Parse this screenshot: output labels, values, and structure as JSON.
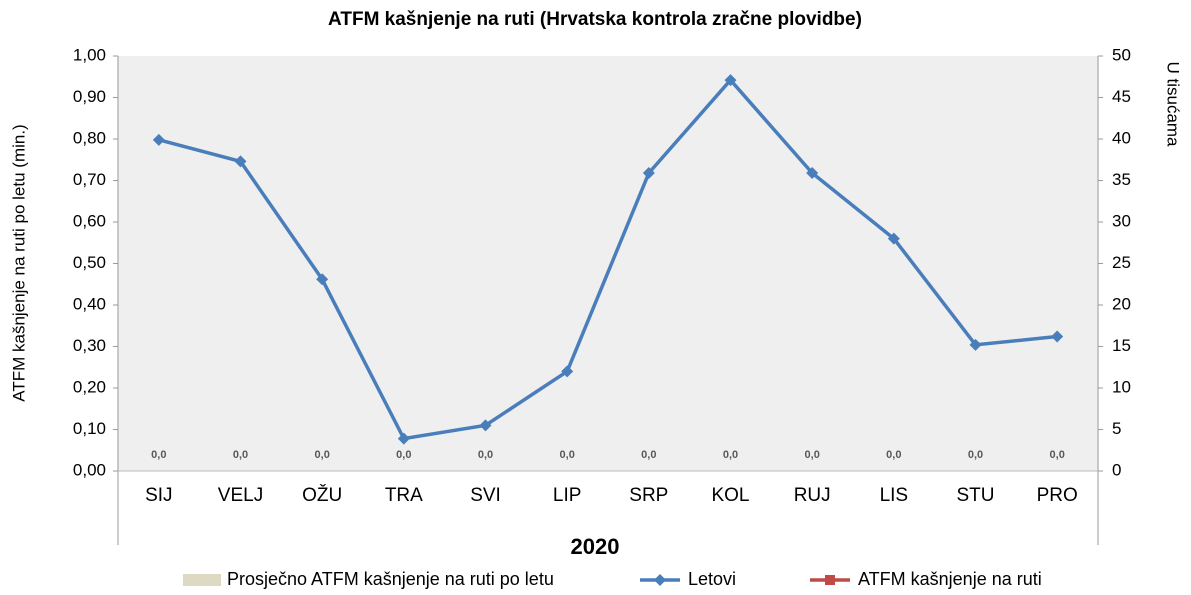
{
  "chart_data": {
    "type": "combo",
    "title": "ATFM kašnjenje na ruti (Hrvatska kontrola zračne plovidbe)",
    "ylabel": "ATFM kašnjenje na ruti po letu (min.)",
    "y2label": "U tisućama",
    "xlabel": "2020",
    "categories": [
      "SIJ",
      "VELJ",
      "OŽU",
      "TRA",
      "SVI",
      "LIP",
      "SRP",
      "KOL",
      "RUJ",
      "LIS",
      "STU",
      "PRO"
    ],
    "ylim": [
      0,
      1
    ],
    "yticks": [
      {
        "value": 0,
        "label": "0,00"
      },
      {
        "value": 0.1,
        "label": "0,10"
      },
      {
        "value": 0.2,
        "label": "0,20"
      },
      {
        "value": 0.3,
        "label": "0,30"
      },
      {
        "value": 0.4,
        "label": "0,40"
      },
      {
        "value": 0.5,
        "label": "0,50"
      },
      {
        "value": 0.6,
        "label": "0,60"
      },
      {
        "value": 0.7,
        "label": "0,70"
      },
      {
        "value": 0.8,
        "label": "0,80"
      },
      {
        "value": 0.9,
        "label": "0,90"
      },
      {
        "value": 1,
        "label": "1,00"
      }
    ],
    "y2lim": [
      0,
      50
    ],
    "y2ticks": [
      0,
      5,
      10,
      15,
      20,
      25,
      30,
      35,
      40,
      45,
      50
    ],
    "grid": false,
    "legend": "bottom",
    "series": [
      {
        "name": "Prosječno ATFM kašnjenje na ruti po letu",
        "type": "bar",
        "color": "#ddd9c3",
        "values": [
          0,
          0,
          0,
          0,
          0,
          0,
          0,
          0,
          0,
          0,
          0,
          0
        ],
        "value_labels": [
          "0,0",
          "0,0",
          "0,0",
          "0,0",
          "0,0",
          "0,0",
          "0,0",
          "0,0",
          "0,0",
          "0,0",
          "0,0",
          "0,0"
        ]
      },
      {
        "name": "Letovi",
        "type": "line",
        "axis": "y2",
        "color": "#4a7ebb",
        "values": [
          39.9,
          37.3,
          23.1,
          3.9,
          5.5,
          12.0,
          35.9,
          47.1,
          35.9,
          28.0,
          15.2,
          16.2
        ]
      },
      {
        "name": "ATFM kašnjenje na ruti",
        "type": "line",
        "axis": "y2",
        "color": "#be4b48",
        "values": [
          null,
          null,
          null,
          null,
          null,
          null,
          null,
          null,
          null,
          null,
          null,
          null
        ]
      }
    ]
  }
}
